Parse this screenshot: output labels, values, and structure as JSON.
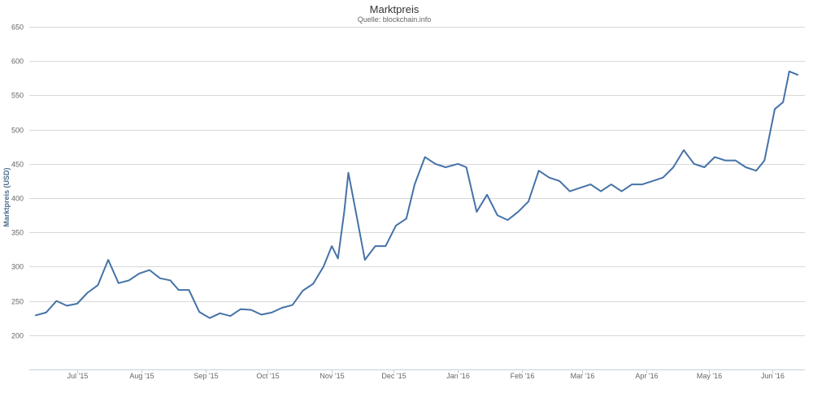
{
  "chart_data": {
    "type": "line",
    "title": "Marktpreis",
    "subtitle": "Quelle: blockchain.info",
    "ylabel": "Marktpreis (USD)",
    "xlabel": "",
    "ylim": [
      150,
      650
    ],
    "y_ticks": [
      200,
      250,
      300,
      350,
      400,
      450,
      500,
      550,
      600,
      650
    ],
    "x_ticks": [
      "Jul '15",
      "Aug '15",
      "Sep '15",
      "Oct '15",
      "Nov '15",
      "Dec '15",
      "Jan '16",
      "Feb '16",
      "Mar '16",
      "Apr '16",
      "May '16",
      "Jun '16"
    ],
    "grid": true,
    "legend": "none",
    "colors": {
      "series": "#4572a7",
      "grid": "#d8d8d8",
      "axis": "#c0d0e0"
    },
    "series": [
      {
        "x": [
          "2015-06-11",
          "2015-06-16",
          "2015-06-21",
          "2015-06-26",
          "2015-07-01",
          "2015-07-06",
          "2015-07-11",
          "2015-07-16",
          "2015-07-21",
          "2015-07-26",
          "2015-07-31",
          "2015-08-05",
          "2015-08-10",
          "2015-08-15",
          "2015-08-19",
          "2015-08-24",
          "2015-08-29",
          "2015-09-03",
          "2015-09-08",
          "2015-09-13",
          "2015-09-18",
          "2015-09-23",
          "2015-09-28",
          "2015-10-03",
          "2015-10-08",
          "2015-10-13",
          "2015-10-18",
          "2015-10-23",
          "2015-10-28",
          "2015-11-01",
          "2015-11-04",
          "2015-11-07",
          "2015-11-09",
          "2015-11-12",
          "2015-11-17",
          "2015-11-22",
          "2015-11-27",
          "2015-12-02",
          "2015-12-07",
          "2015-12-11",
          "2015-12-16",
          "2015-12-21",
          "2015-12-26",
          "2016-01-01",
          "2016-01-05",
          "2016-01-10",
          "2016-01-15",
          "2016-01-20",
          "2016-01-25",
          "2016-01-30",
          "2016-02-04",
          "2016-02-09",
          "2016-02-14",
          "2016-02-19",
          "2016-02-24",
          "2016-02-29",
          "2016-03-05",
          "2016-03-10",
          "2016-03-15",
          "2016-03-20",
          "2016-03-25",
          "2016-03-30",
          "2016-04-04",
          "2016-04-09",
          "2016-04-14",
          "2016-04-19",
          "2016-04-24",
          "2016-04-29",
          "2016-05-04",
          "2016-05-09",
          "2016-05-14",
          "2016-05-19",
          "2016-05-24",
          "2016-05-28",
          "2016-06-02",
          "2016-06-06",
          "2016-06-09",
          "2016-06-13"
        ],
        "values": [
          229,
          233,
          250,
          243,
          246,
          262,
          273,
          310,
          276,
          280,
          290,
          295,
          283,
          280,
          266,
          266,
          234,
          225,
          232,
          228,
          238,
          237,
          230,
          233,
          240,
          244,
          265,
          275,
          300,
          330,
          312,
          380,
          437,
          390,
          310,
          330,
          330,
          360,
          370,
          420,
          460,
          450,
          445,
          450,
          445,
          380,
          405,
          375,
          368,
          380,
          395,
          440,
          430,
          425,
          410,
          415,
          420,
          410,
          420,
          410,
          420,
          420,
          425,
          430,
          445,
          470,
          450,
          445,
          460,
          455,
          455,
          445,
          440,
          455,
          530,
          540,
          585,
          580
        ]
      }
    ]
  }
}
